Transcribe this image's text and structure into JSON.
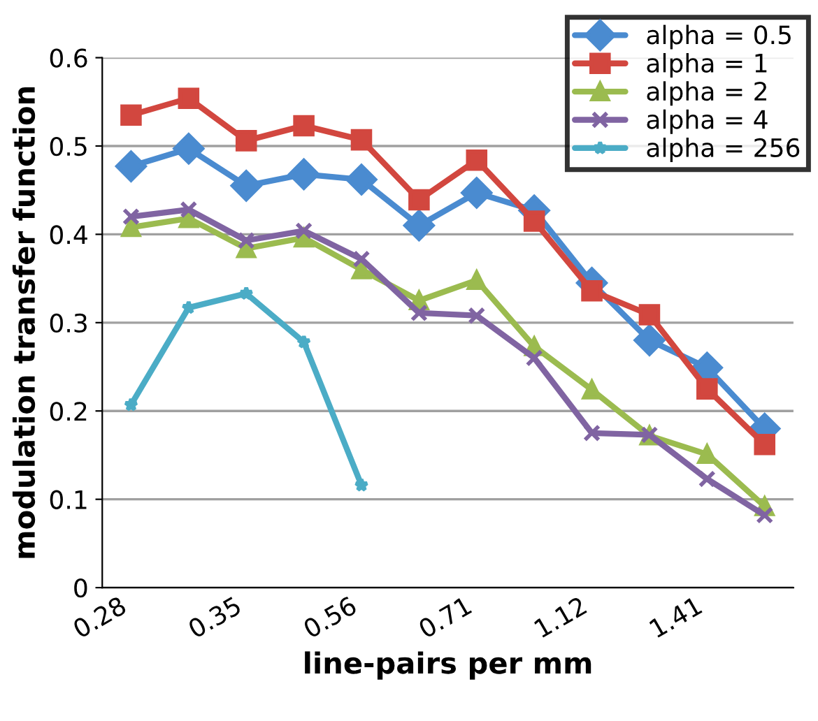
{
  "chart_data": {
    "type": "line",
    "xlabel": "line-pairs per mm",
    "ylabel": "modulation transfer function",
    "categories": [
      "0.28",
      null,
      "0.35",
      null,
      "0.56",
      null,
      "0.71",
      null,
      "1.12",
      null,
      "1.41",
      null
    ],
    "ylim": [
      0,
      0.6
    ],
    "yticks": [
      0,
      0.1,
      0.2,
      0.3,
      0.4,
      0.5,
      0.6
    ],
    "grid": "y",
    "legend": "top right",
    "series": [
      {
        "name": "alpha = 0.5",
        "color": "#4a8bd0",
        "marker": "diamond",
        "values": [
          0.477,
          0.497,
          0.455,
          0.468,
          0.462,
          0.41,
          0.447,
          0.427,
          0.345,
          0.28,
          0.249,
          0.18
        ]
      },
      {
        "name": "alpha = 1",
        "color": "#d2473f",
        "marker": "square",
        "values": [
          0.535,
          0.554,
          0.506,
          0.523,
          0.507,
          0.439,
          0.484,
          0.415,
          0.336,
          0.309,
          0.225,
          0.162
        ]
      },
      {
        "name": "alpha = 2",
        "color": "#9bbb4f",
        "marker": "triangle",
        "values": [
          0.408,
          0.418,
          0.384,
          0.396,
          0.36,
          0.325,
          0.348,
          0.273,
          0.224,
          0.172,
          0.151,
          0.092
        ]
      },
      {
        "name": "alpha = 4",
        "color": "#8064a2",
        "marker": "cross",
        "values": [
          0.42,
          0.428,
          0.393,
          0.404,
          0.372,
          0.311,
          0.308,
          0.26,
          0.175,
          0.173,
          0.123,
          0.082
        ]
      },
      {
        "name": "alpha = 256",
        "color": "#4bacc6",
        "marker": "star",
        "values": [
          0.207,
          0.317,
          0.333,
          0.278,
          0.116,
          null,
          null,
          null,
          null,
          null,
          null,
          null
        ]
      }
    ]
  }
}
